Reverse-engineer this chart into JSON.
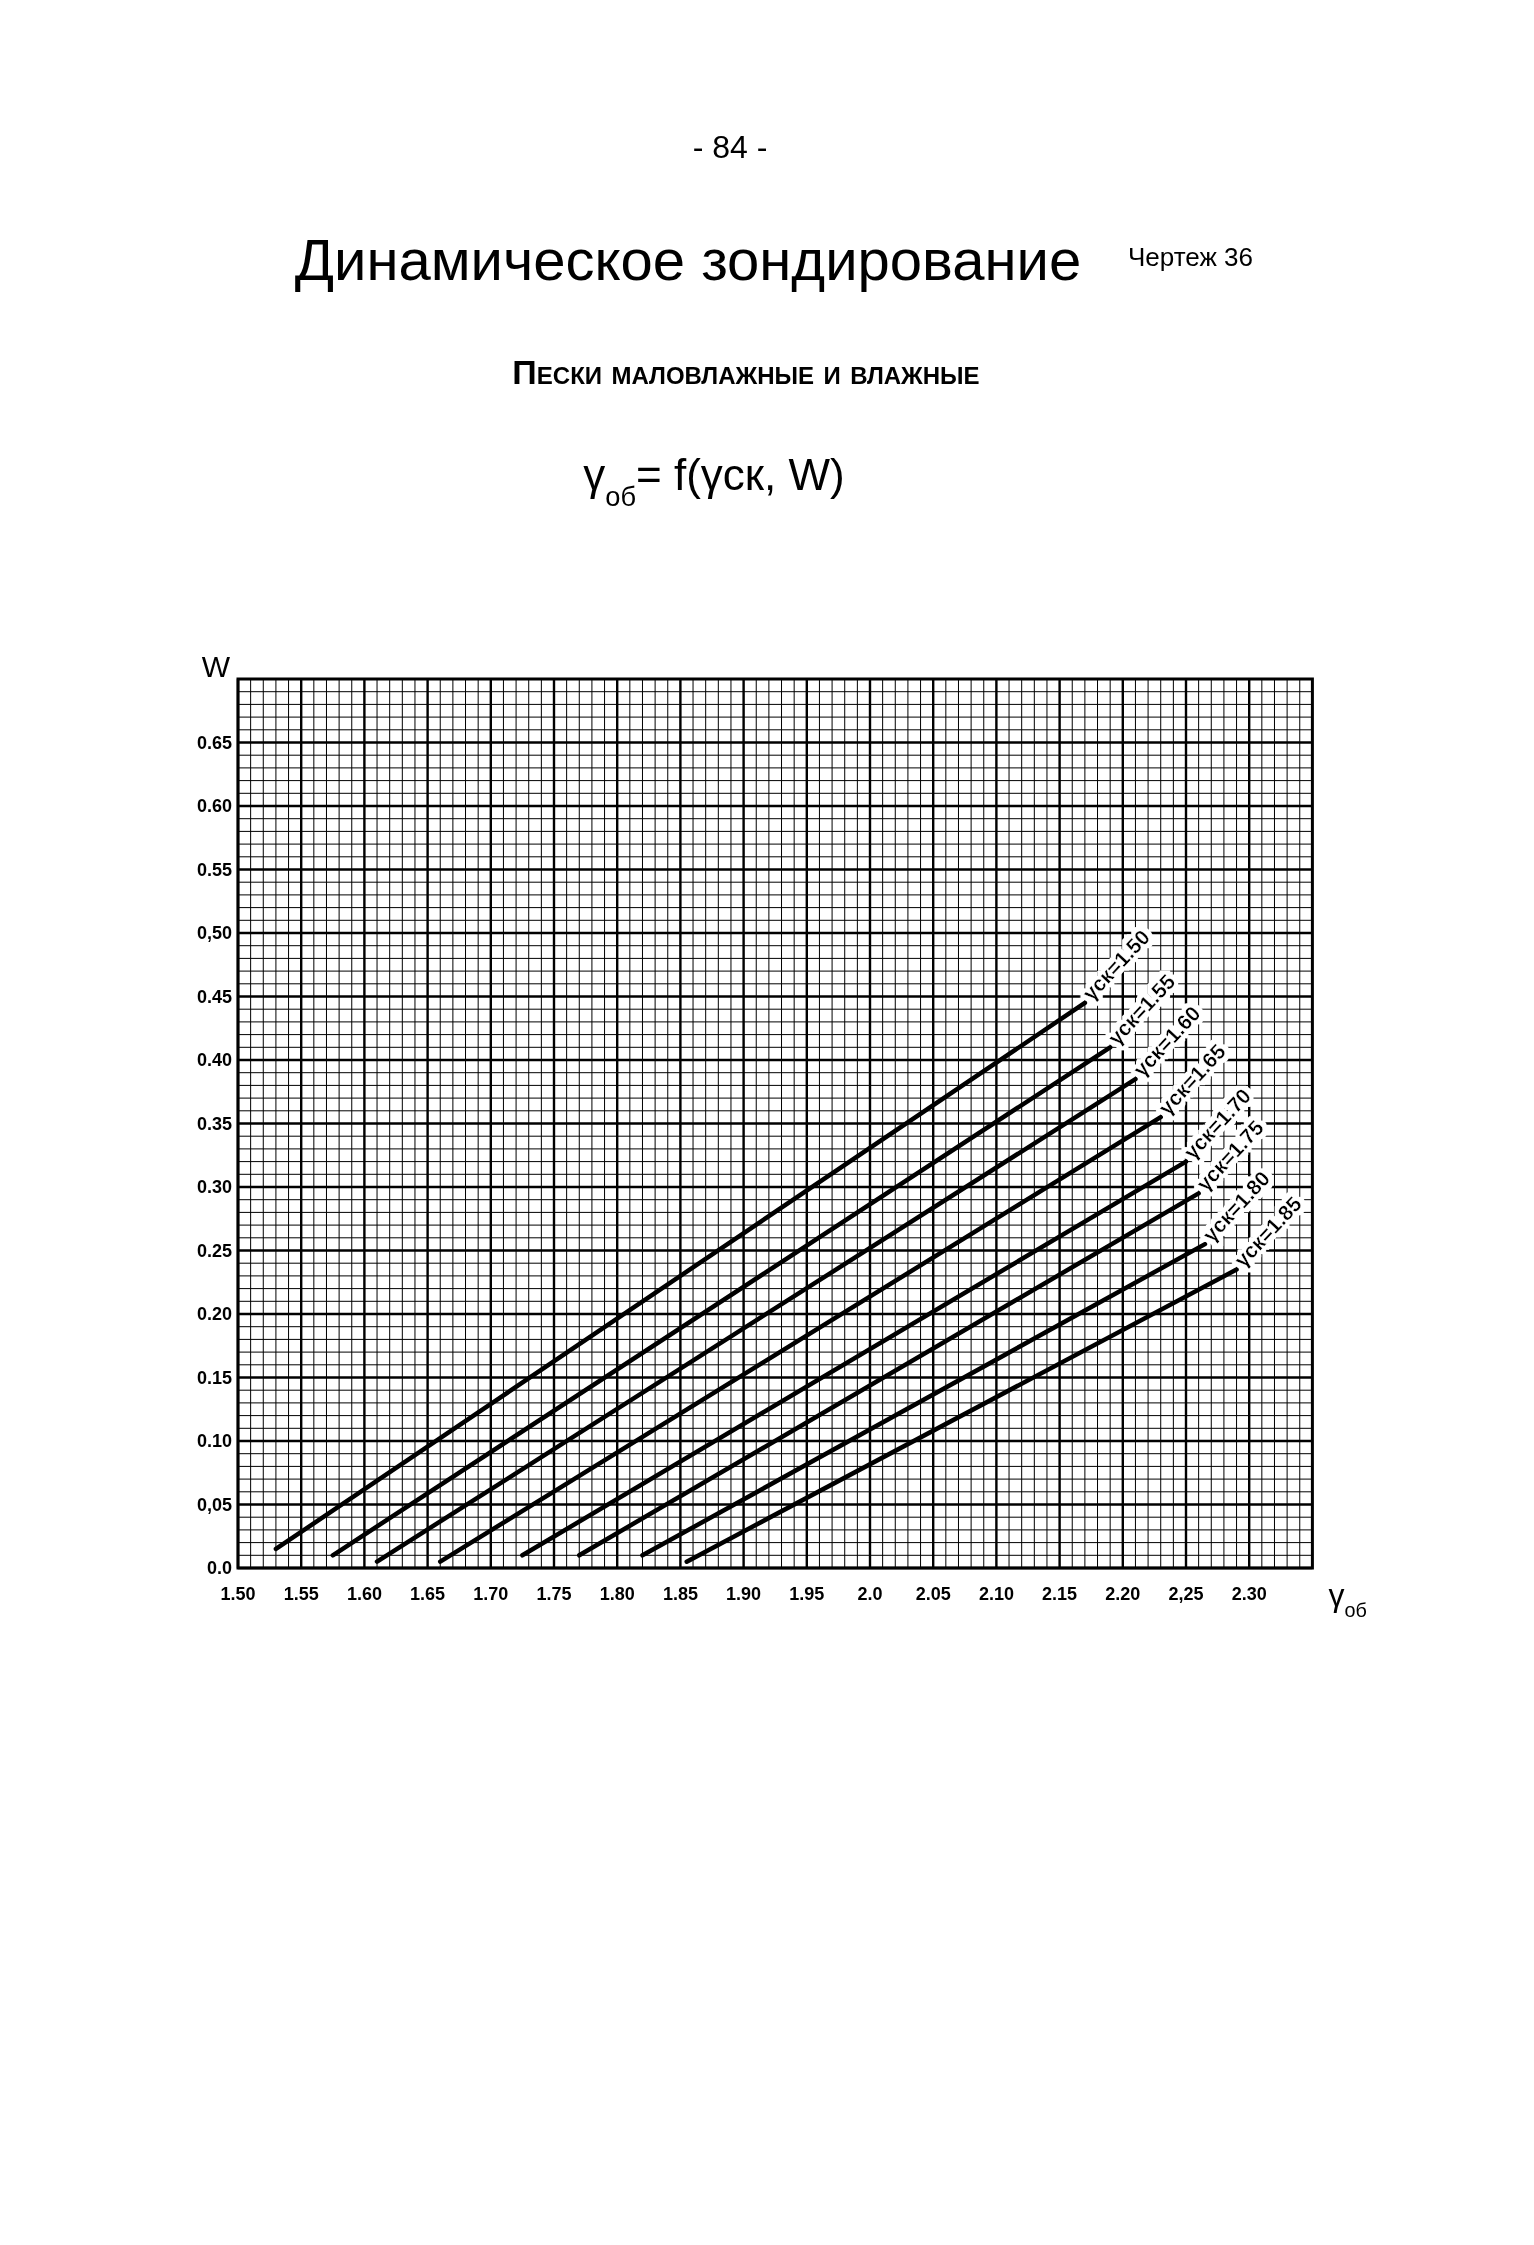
{
  "chart_data": {
    "type": "line",
    "title": "Динамическое зондирование",
    "subtitle": "Пески маловлажные и влажные",
    "annotations": [
      "- 84 -",
      "Чертеж 36",
      "γ$_{об}$= f(γск, W)"
    ],
    "xlabel": "γ$_{об}$",
    "ylabel": "W",
    "xlim": [
      1.5,
      2.35
    ],
    "ylim": [
      0,
      0.7
    ],
    "xticks": [
      {
        "value": 1.5,
        "label": "1.50"
      },
      1.55,
      {
        "value": 1.6,
        "label": "1.60"
      },
      1.65,
      {
        "value": 1.7,
        "label": "1.70"
      },
      1.75,
      {
        "value": 1.8,
        "label": "1.80"
      },
      1.85,
      {
        "value": 1.9,
        "label": "1.90"
      },
      1.95,
      {
        "value": 2.0,
        "label": "2.0"
      },
      2.05,
      {
        "value": 2.1,
        "label": "2.10"
      },
      2.15,
      {
        "value": 2.2,
        "label": "2.20"
      },
      {
        "value": 2.25,
        "label": "2,25"
      },
      {
        "value": 2.3,
        "label": "2.30"
      }
    ],
    "yticks": [
      {
        "value": 0,
        "label": "0.0"
      },
      {
        "value": 0.05,
        "label": "0,05"
      },
      {
        "value": 0.1,
        "label": "0.10"
      },
      0.15,
      {
        "value": 0.2,
        "label": "0.20"
      },
      0.25,
      {
        "value": 0.3,
        "label": "0.30"
      },
      0.35,
      {
        "value": 0.4,
        "label": "0.40"
      },
      0.45,
      {
        "value": 0.5,
        "label": "0,50"
      },
      0.55,
      {
        "value": 0.6,
        "label": "0.60"
      },
      0.65
    ],
    "grid": true,
    "line_style": "solid",
    "series": [
      {
        "name": "γск=1.50",
        "color": "#000000",
        "x": [
          1.53,
          2.17
        ],
        "values": [
          0.015,
          0.445
        ]
      },
      {
        "name": "γск=1.55",
        "color": "#000000",
        "x": [
          1.575,
          2.19
        ],
        "values": [
          0.01,
          0.41
        ]
      },
      {
        "name": "γск=1.60",
        "color": "#000000",
        "x": [
          1.61,
          2.21
        ],
        "values": [
          0.005,
          0.385
        ]
      },
      {
        "name": "γск=1.65",
        "color": "#000000",
        "x": [
          1.66,
          2.23
        ],
        "values": [
          0.005,
          0.355
        ]
      },
      {
        "name": "γск=1.70",
        "color": "#000000",
        "x": [
          1.725,
          2.25
        ],
        "values": [
          0.01,
          0.32
        ]
      },
      {
        "name": "γск=1.75",
        "color": "#000000",
        "x": [
          1.77,
          2.26
        ],
        "values": [
          0.01,
          0.295
        ]
      },
      {
        "name": "γск=1.80",
        "color": "#000000",
        "x": [
          1.82,
          2.265
        ],
        "values": [
          0.01,
          0.255
        ]
      },
      {
        "name": "γск=1.85",
        "color": "#000000",
        "x": [
          1.855,
          2.29
        ],
        "values": [
          0.005,
          0.235
        ]
      }
    ]
  }
}
